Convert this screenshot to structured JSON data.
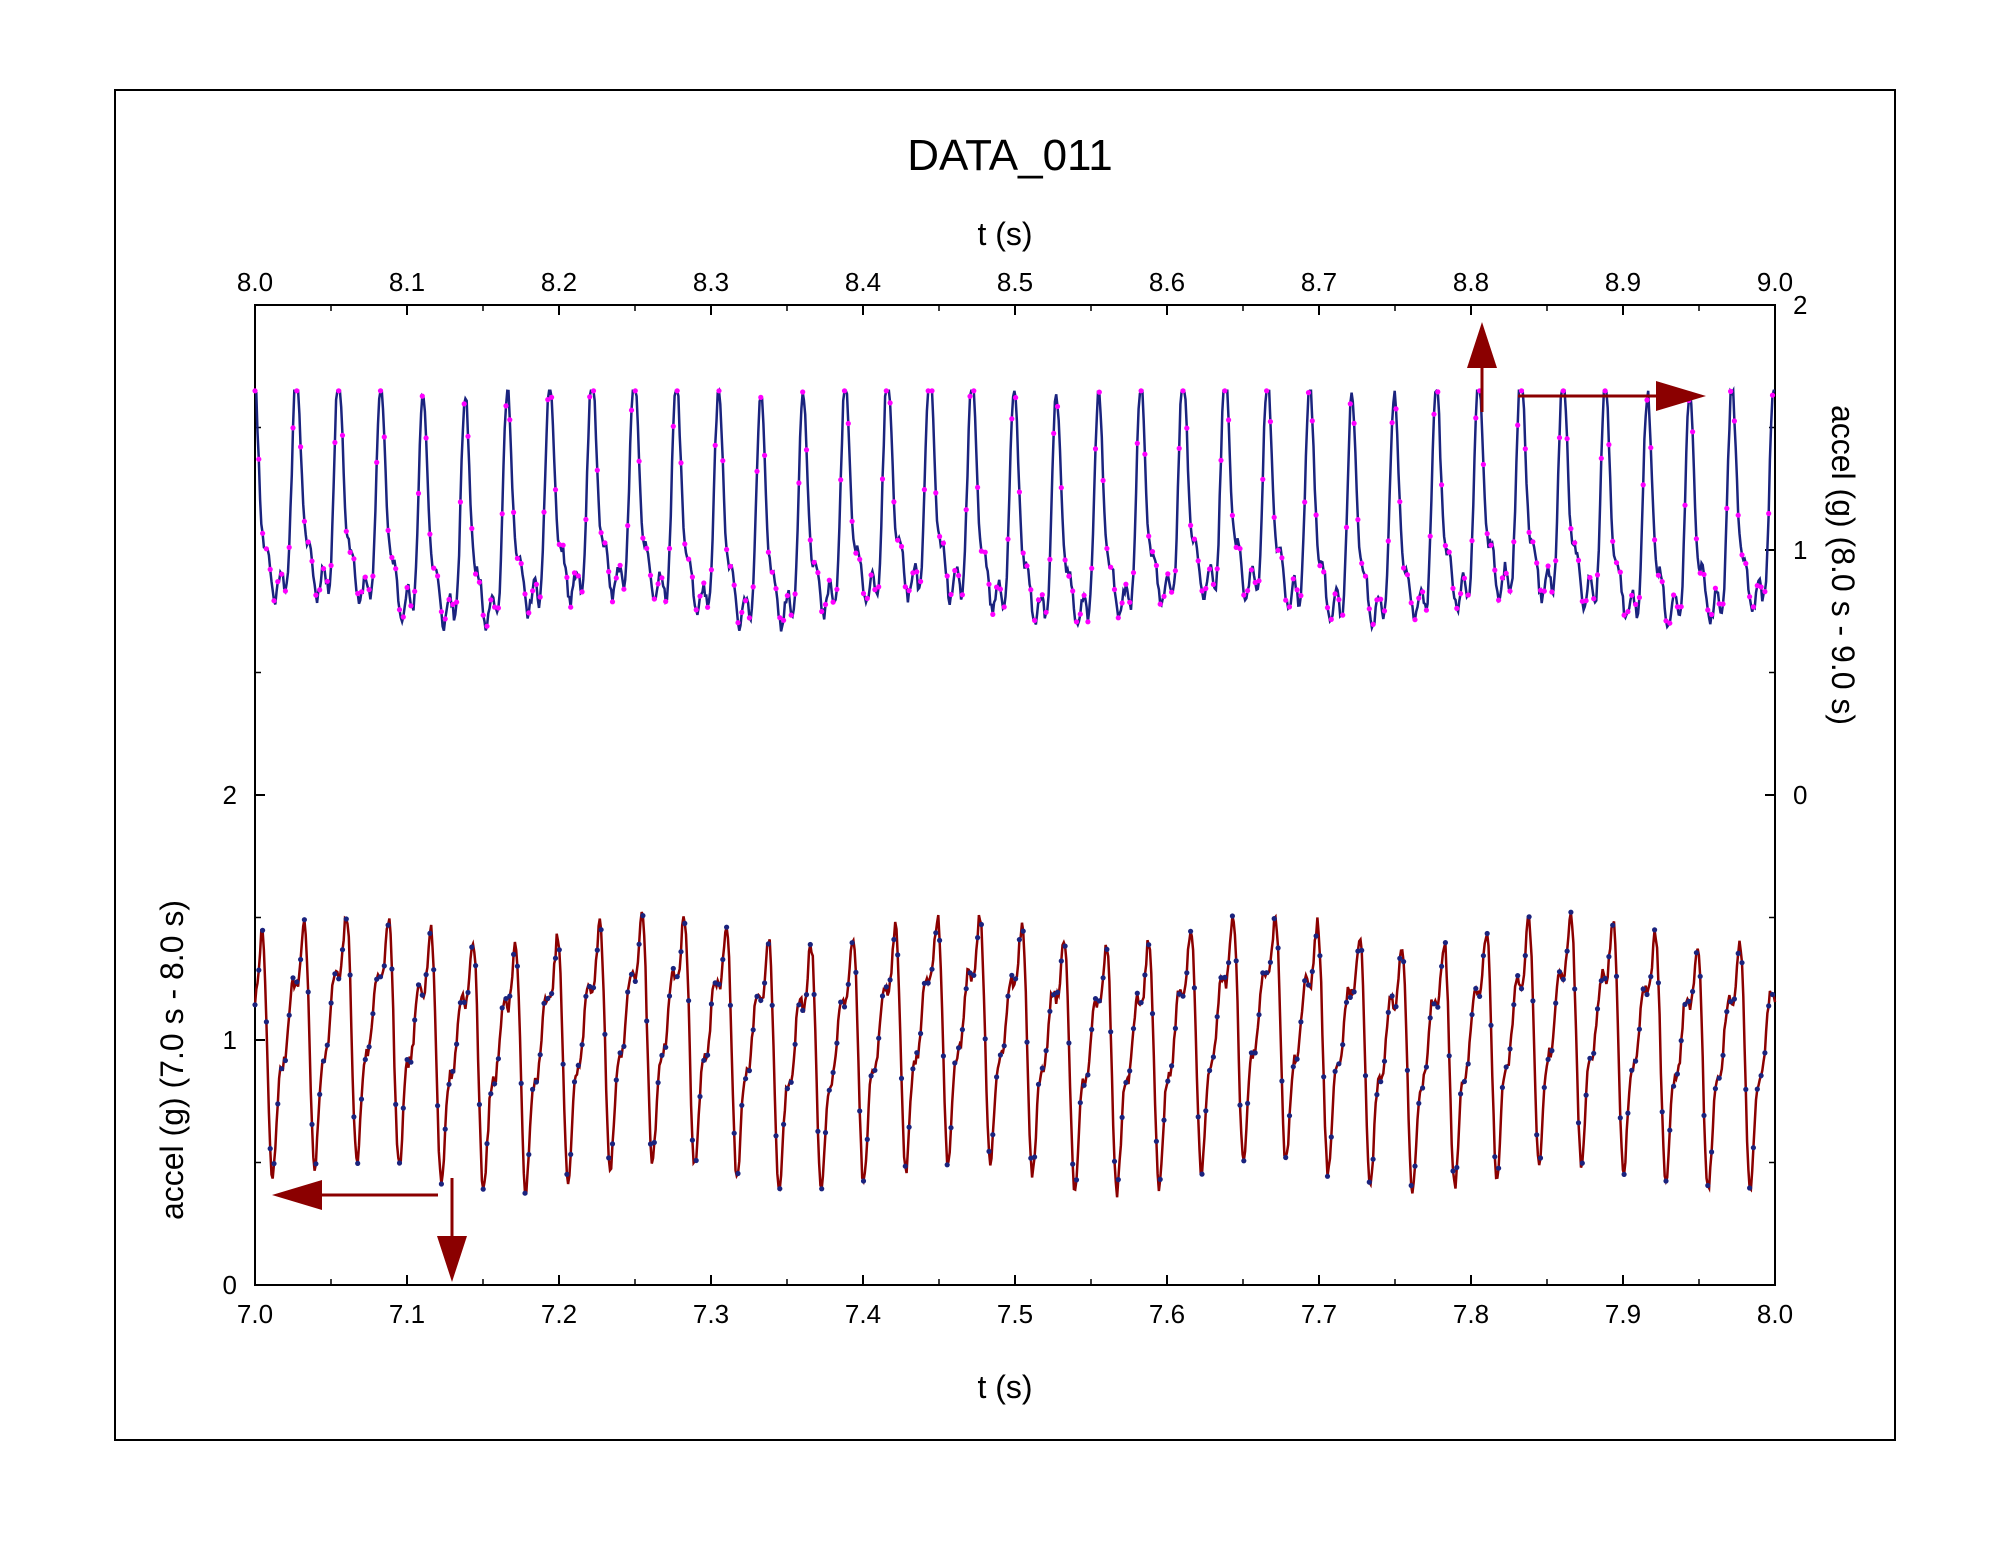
{
  "chart_data": {
    "type": "line",
    "title": "DATA_011",
    "bottom_axis": {
      "label": "t (s)",
      "range": [
        7.0,
        8.0
      ],
      "ticks": [
        "7.0",
        "7.1",
        "7.2",
        "7.3",
        "7.4",
        "7.5",
        "7.6",
        "7.7",
        "7.8",
        "7.9",
        "8.0"
      ]
    },
    "top_axis": {
      "label": "t (s)",
      "range": [
        8.0,
        9.0
      ],
      "ticks": [
        "8.0",
        "8.1",
        "8.2",
        "8.3",
        "8.4",
        "8.5",
        "8.6",
        "8.7",
        "8.8",
        "8.9",
        "9.0"
      ]
    },
    "left_axis": {
      "label": "accel (g) (7.0 s - 8.0 s)",
      "range": [
        0,
        4
      ],
      "ticks": [
        {
          "value": 0,
          "label": "0"
        },
        {
          "value": 1,
          "label": "1"
        },
        {
          "value": 2,
          "label": "2"
        }
      ]
    },
    "right_axis": {
      "label": "accel (g) (8.0 s - 9.0 s)",
      "range": [
        -2,
        2
      ],
      "ticks": [
        {
          "value": 0,
          "label": "0"
        },
        {
          "value": 1,
          "label": "1"
        },
        {
          "value": 2,
          "label": "2"
        }
      ]
    },
    "series": [
      {
        "name": "accel 7.0 s - 8.0 s",
        "axis": "bottom-left",
        "line_color": "#8b0000",
        "marker_color": "#1a237e",
        "baseline": 1.0,
        "amplitude_min": 0.35,
        "amplitude_max": 1.65,
        "seed": 7
      },
      {
        "name": "accel 8.0 s - 9.0 s",
        "axis": "top-right",
        "line_color": "#1a237e",
        "marker_color": "#ff00ff",
        "baseline": 1.05,
        "amplitude_min": 0.45,
        "amplitude_max": 1.65,
        "seed": 11
      }
    ],
    "annotations": [
      {
        "type": "arrow",
        "direction": "up",
        "meaning": "series uses top axis (t 8.0 s - 9.0 s)",
        "color": "#8b0000"
      },
      {
        "type": "arrow",
        "direction": "right",
        "meaning": "series uses right axis",
        "color": "#8b0000"
      },
      {
        "type": "arrow",
        "direction": "left",
        "meaning": "series uses left axis",
        "color": "#8b0000"
      },
      {
        "type": "arrow",
        "direction": "down",
        "meaning": "series uses bottom axis (t 7.0 s - 8.0 s)",
        "color": "#8b0000"
      }
    ]
  }
}
